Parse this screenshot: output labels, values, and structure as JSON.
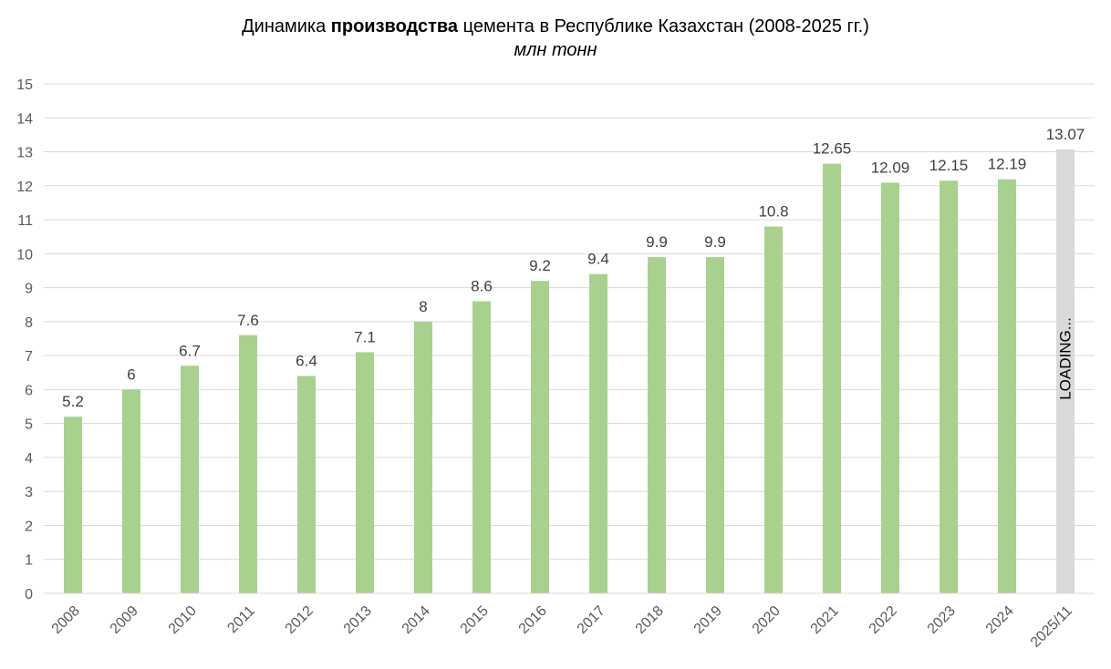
{
  "chart_data": {
    "type": "bar",
    "title": {
      "before": "Динамика ",
      "bold": "производства",
      "after": " цемента в Республике Казахстан (2008-2025 гг.)"
    },
    "subtitle": "млн тонн",
    "categories": [
      "2008",
      "2009",
      "2010",
      "2011",
      "2012",
      "2013",
      "2014",
      "2015",
      "2016",
      "2017",
      "2018",
      "2019",
      "2020",
      "2021",
      "2022",
      "2023",
      "2024",
      "2025/11"
    ],
    "values": [
      5.2,
      6,
      6.7,
      7.6,
      6.4,
      7.1,
      8,
      8.6,
      9.2,
      9.4,
      9.9,
      9.9,
      10.8,
      12.65,
      12.09,
      12.15,
      12.19,
      13.07
    ],
    "value_labels": [
      "5.2",
      "6",
      "6.7",
      "7.6",
      "6.4",
      "7.1",
      "8",
      "8.6",
      "9.2",
      "9.4",
      "9.9",
      "9.9",
      "10.8",
      "12.65",
      "12.09",
      "12.15",
      "12.19",
      "13.07"
    ],
    "highlight_label": "LOADING...",
    "ylim": [
      0,
      15
    ],
    "yticks": [
      "0",
      "1",
      "2",
      "3",
      "4",
      "5",
      "6",
      "7",
      "8",
      "9",
      "10",
      "11",
      "12",
      "13",
      "14",
      "15"
    ],
    "grid": true,
    "legend": "none",
    "colors": {
      "bar": "#a9d18e",
      "highlight_bar": "#d9d9d9",
      "grid": "#d9d9d9",
      "text": "#595959",
      "label": "#404040"
    }
  }
}
